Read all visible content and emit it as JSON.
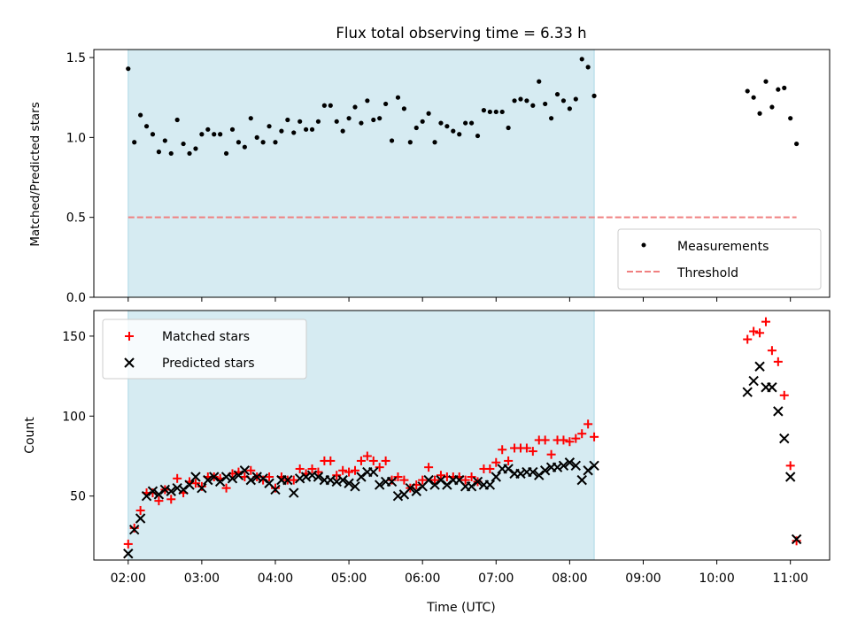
{
  "chart_data": {
    "type": "scatter",
    "title": "Flux total observing time = 6.33 h",
    "shaded_span": [
      "02:00",
      "08:20"
    ],
    "x_axis": {
      "label": "Time (UTC)",
      "ticks": [
        "02:00",
        "03:00",
        "04:00",
        "05:00",
        "06:00",
        "07:00",
        "08:00",
        "09:00",
        "10:00",
        "11:00"
      ],
      "range": [
        "01:32",
        "11:32"
      ]
    },
    "top_panel": {
      "ylabel": "Matched/Predicted stars",
      "ylim": [
        0,
        1.55
      ],
      "yticks": [
        "0.0",
        "0.5",
        "1.0",
        "1.5"
      ],
      "legend": {
        "position": "lower right",
        "entries": [
          "Measurements",
          "Threshold"
        ]
      },
      "threshold": {
        "name": "Threshold",
        "value": 0.5,
        "color": "#f08080",
        "from": "02:00",
        "to": "11:05"
      },
      "measurements": {
        "name": "Measurements",
        "color": "#000000",
        "points": [
          [
            "02:00",
            1.43
          ],
          [
            "02:05",
            0.97
          ],
          [
            "02:10",
            1.14
          ],
          [
            "02:15",
            1.07
          ],
          [
            "02:20",
            1.02
          ],
          [
            "02:25",
            0.91
          ],
          [
            "02:30",
            0.98
          ],
          [
            "02:35",
            0.9
          ],
          [
            "02:40",
            1.11
          ],
          [
            "02:45",
            0.96
          ],
          [
            "02:50",
            0.9
          ],
          [
            "02:55",
            0.93
          ],
          [
            "03:00",
            1.02
          ],
          [
            "03:05",
            1.05
          ],
          [
            "03:10",
            1.02
          ],
          [
            "03:15",
            1.02
          ],
          [
            "03:20",
            0.9
          ],
          [
            "03:25",
            1.05
          ],
          [
            "03:30",
            0.97
          ],
          [
            "03:35",
            0.94
          ],
          [
            "03:40",
            1.12
          ],
          [
            "03:45",
            1.0
          ],
          [
            "03:50",
            0.97
          ],
          [
            "03:55",
            1.07
          ],
          [
            "04:00",
            0.97
          ],
          [
            "04:05",
            1.04
          ],
          [
            "04:10",
            1.11
          ],
          [
            "04:15",
            1.03
          ],
          [
            "04:20",
            1.1
          ],
          [
            "04:25",
            1.05
          ],
          [
            "04:30",
            1.05
          ],
          [
            "04:35",
            1.1
          ],
          [
            "04:40",
            1.2
          ],
          [
            "04:45",
            1.2
          ],
          [
            "04:50",
            1.1
          ],
          [
            "04:55",
            1.04
          ],
          [
            "05:00",
            1.12
          ],
          [
            "05:05",
            1.19
          ],
          [
            "05:10",
            1.09
          ],
          [
            "05:15",
            1.23
          ],
          [
            "05:20",
            1.11
          ],
          [
            "05:25",
            1.12
          ],
          [
            "05:30",
            1.21
          ],
          [
            "05:35",
            0.98
          ],
          [
            "05:40",
            1.25
          ],
          [
            "05:45",
            1.18
          ],
          [
            "05:50",
            0.97
          ],
          [
            "05:55",
            1.06
          ],
          [
            "06:00",
            1.1
          ],
          [
            "06:05",
            1.15
          ],
          [
            "06:10",
            0.97
          ],
          [
            "06:15",
            1.09
          ],
          [
            "06:20",
            1.07
          ],
          [
            "06:25",
            1.04
          ],
          [
            "06:30",
            1.02
          ],
          [
            "06:35",
            1.09
          ],
          [
            "06:40",
            1.09
          ],
          [
            "06:45",
            1.01
          ],
          [
            "06:50",
            1.17
          ],
          [
            "06:55",
            1.16
          ],
          [
            "07:00",
            1.16
          ],
          [
            "07:05",
            1.16
          ],
          [
            "07:10",
            1.06
          ],
          [
            "07:15",
            1.23
          ],
          [
            "07:20",
            1.24
          ],
          [
            "07:25",
            1.23
          ],
          [
            "07:30",
            1.2
          ],
          [
            "07:35",
            1.35
          ],
          [
            "07:40",
            1.21
          ],
          [
            "07:45",
            1.12
          ],
          [
            "07:50",
            1.27
          ],
          [
            "07:55",
            1.23
          ],
          [
            "08:00",
            1.18
          ],
          [
            "08:05",
            1.24
          ],
          [
            "08:10",
            1.49
          ],
          [
            "08:15",
            1.44
          ],
          [
            "08:20",
            1.26
          ],
          [
            "10:25",
            1.29
          ],
          [
            "10:30",
            1.25
          ],
          [
            "10:35",
            1.15
          ],
          [
            "10:40",
            1.35
          ],
          [
            "10:45",
            1.19
          ],
          [
            "10:50",
            1.3
          ],
          [
            "10:55",
            1.31
          ],
          [
            "11:00",
            1.12
          ],
          [
            "11:05",
            0.96
          ]
        ]
      }
    },
    "bottom_panel": {
      "ylabel": "Count",
      "ylim": [
        10,
        166
      ],
      "yticks": [
        "50",
        "100",
        "150"
      ],
      "legend": {
        "position": "upper left",
        "entries": [
          "Matched stars",
          "Predicted stars"
        ]
      },
      "series": [
        {
          "name": "Matched stars",
          "marker": "+",
          "color": "#ff0000",
          "points": [
            [
              "02:00",
              20
            ],
            [
              "02:05",
              30
            ],
            [
              "02:10",
              41
            ],
            [
              "02:15",
              52
            ],
            [
              "02:20",
              52
            ],
            [
              "02:25",
              47
            ],
            [
              "02:30",
              54
            ],
            [
              "02:35",
              48
            ],
            [
              "02:40",
              61
            ],
            [
              "02:45",
              52
            ],
            [
              "02:50",
              59
            ],
            [
              "02:55",
              58
            ],
            [
              "03:00",
              56
            ],
            [
              "03:05",
              62
            ],
            [
              "03:10",
              62
            ],
            [
              "03:15",
              61
            ],
            [
              "03:20",
              55
            ],
            [
              "03:25",
              64
            ],
            [
              "03:30",
              65
            ],
            [
              "03:35",
              62
            ],
            [
              "03:40",
              66
            ],
            [
              "03:45",
              62
            ],
            [
              "03:50",
              60
            ],
            [
              "03:55",
              62
            ],
            [
              "04:00",
              55
            ],
            [
              "04:05",
              62
            ],
            [
              "04:10",
              60
            ],
            [
              "04:15",
              60
            ],
            [
              "04:20",
              67
            ],
            [
              "04:25",
              64
            ],
            [
              "04:30",
              67
            ],
            [
              "04:35",
              65
            ],
            [
              "04:40",
              72
            ],
            [
              "04:45",
              72
            ],
            [
              "04:50",
              63
            ],
            [
              "04:55",
              66
            ],
            [
              "05:00",
              65
            ],
            [
              "05:05",
              66
            ],
            [
              "05:10",
              72
            ],
            [
              "05:15",
              75
            ],
            [
              "05:20",
              72
            ],
            [
              "05:25",
              68
            ],
            [
              "05:30",
              72
            ],
            [
              "05:35",
              60
            ],
            [
              "05:40",
              62
            ],
            [
              "05:45",
              60
            ],
            [
              "05:50",
              55
            ],
            [
              "05:55",
              57
            ],
            [
              "06:00",
              60
            ],
            [
              "06:05",
              68
            ],
            [
              "06:10",
              60
            ],
            [
              "06:15",
              63
            ],
            [
              "06:20",
              62
            ],
            [
              "06:25",
              62
            ],
            [
              "06:30",
              62
            ],
            [
              "06:35",
              60
            ],
            [
              "06:40",
              62
            ],
            [
              "06:45",
              59
            ],
            [
              "06:50",
              67
            ],
            [
              "06:55",
              67
            ],
            [
              "07:00",
              71
            ],
            [
              "07:05",
              79
            ],
            [
              "07:10",
              72
            ],
            [
              "07:15",
              80
            ],
            [
              "07:20",
              80
            ],
            [
              "07:25",
              80
            ],
            [
              "07:30",
              78
            ],
            [
              "07:35",
              85
            ],
            [
              "07:40",
              85
            ],
            [
              "07:45",
              76
            ],
            [
              "07:50",
              85
            ],
            [
              "07:55",
              85
            ],
            [
              "08:00",
              84
            ],
            [
              "08:05",
              86
            ],
            [
              "08:10",
              89
            ],
            [
              "08:15",
              95
            ],
            [
              "08:20",
              87
            ],
            [
              "10:25",
              148
            ],
            [
              "10:30",
              153
            ],
            [
              "10:35",
              152
            ],
            [
              "10:40",
              159
            ],
            [
              "10:45",
              141
            ],
            [
              "10:50",
              134
            ],
            [
              "10:55",
              113
            ],
            [
              "11:00",
              69
            ],
            [
              "11:05",
              22
            ]
          ]
        },
        {
          "name": "Predicted stars",
          "marker": "x",
          "color": "#000000",
          "points": [
            [
              "02:00",
              14
            ],
            [
              "02:05",
              29
            ],
            [
              "02:10",
              36
            ],
            [
              "02:15",
              50
            ],
            [
              "02:20",
              53
            ],
            [
              "02:25",
              51
            ],
            [
              "02:30",
              54
            ],
            [
              "02:35",
              53
            ],
            [
              "02:40",
              55
            ],
            [
              "02:45",
              54
            ],
            [
              "02:50",
              57
            ],
            [
              "02:55",
              62
            ],
            [
              "03:00",
              55
            ],
            [
              "03:05",
              60
            ],
            [
              "03:10",
              62
            ],
            [
              "03:15",
              59
            ],
            [
              "03:20",
              62
            ],
            [
              "03:25",
              61
            ],
            [
              "03:30",
              63
            ],
            [
              "03:35",
              66
            ],
            [
              "03:40",
              60
            ],
            [
              "03:45",
              62
            ],
            [
              "03:50",
              61
            ],
            [
              "03:55",
              58
            ],
            [
              "04:00",
              54
            ],
            [
              "04:05",
              60
            ],
            [
              "04:10",
              60
            ],
            [
              "04:15",
              52
            ],
            [
              "04:20",
              61
            ],
            [
              "04:25",
              62
            ],
            [
              "04:30",
              63
            ],
            [
              "04:35",
              62
            ],
            [
              "04:40",
              60
            ],
            [
              "04:45",
              60
            ],
            [
              "04:50",
              59
            ],
            [
              "04:55",
              60
            ],
            [
              "05:00",
              58
            ],
            [
              "05:05",
              56
            ],
            [
              "05:10",
              62
            ],
            [
              "05:15",
              65
            ],
            [
              "05:20",
              65
            ],
            [
              "05:25",
              57
            ],
            [
              "05:30",
              59
            ],
            [
              "05:35",
              59
            ],
            [
              "05:40",
              50
            ],
            [
              "05:45",
              51
            ],
            [
              "05:50",
              55
            ],
            [
              "05:55",
              53
            ],
            [
              "06:00",
              56
            ],
            [
              "06:05",
              60
            ],
            [
              "06:10",
              57
            ],
            [
              "06:15",
              60
            ],
            [
              "06:20",
              57
            ],
            [
              "06:25",
              60
            ],
            [
              "06:30",
              60
            ],
            [
              "06:35",
              56
            ],
            [
              "06:40",
              56
            ],
            [
              "06:45",
              59
            ],
            [
              "06:50",
              57
            ],
            [
              "06:55",
              57
            ],
            [
              "07:00",
              62
            ],
            [
              "07:05",
              67
            ],
            [
              "07:10",
              67
            ],
            [
              "07:15",
              64
            ],
            [
              "07:20",
              64
            ],
            [
              "07:25",
              65
            ],
            [
              "07:30",
              65
            ],
            [
              "07:35",
              63
            ],
            [
              "07:40",
              66
            ],
            [
              "07:45",
              68
            ],
            [
              "07:50",
              68
            ],
            [
              "07:55",
              69
            ],
            [
              "08:00",
              71
            ],
            [
              "08:05",
              69
            ],
            [
              "08:10",
              60
            ],
            [
              "08:15",
              66
            ],
            [
              "08:20",
              69
            ],
            [
              "10:25",
              115
            ],
            [
              "10:30",
              122
            ],
            [
              "10:35",
              131
            ],
            [
              "10:40",
              118
            ],
            [
              "10:45",
              118
            ],
            [
              "10:50",
              103
            ],
            [
              "10:55",
              86
            ],
            [
              "11:00",
              62
            ],
            [
              "11:05",
              23
            ]
          ]
        }
      ]
    },
    "colors": {
      "shade": "#add8e6",
      "threshold": "#f08080",
      "matched": "#ff0000",
      "predicted": "#000000"
    }
  }
}
